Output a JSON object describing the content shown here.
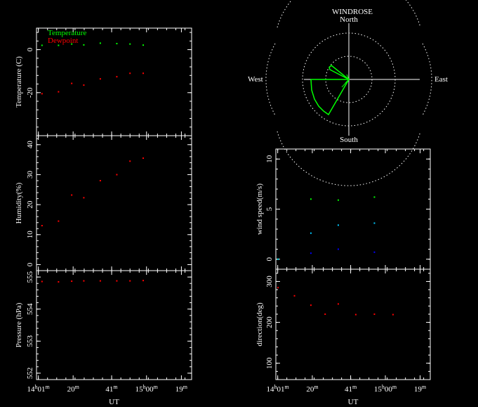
{
  "chart_data": [
    {
      "type": "scatter",
      "ylabel": "Temperature (C)",
      "legend": [
        "Temperature",
        "Dewpoint"
      ],
      "legend_colors": [
        "#00ff00",
        "#ff0000"
      ],
      "ylim": [
        -40,
        10
      ],
      "yticks": [
        "0",
        "-20"
      ],
      "series": [
        {
          "name": "Temperature",
          "color": "#00ff00",
          "x": [
            14.05,
            14.2,
            14.32,
            14.43,
            14.58,
            14.73,
            14.85,
            14.97
          ],
          "y": [
            2,
            2,
            2.6,
            2.2,
            3,
            2.8,
            2.6,
            2.1
          ]
        },
        {
          "name": "Dewpoint",
          "color": "#ff0000",
          "x": [
            14.05,
            14.2,
            14.32,
            14.43,
            14.58,
            14.73,
            14.85,
            14.97
          ],
          "y": [
            -20.5,
            -19.6,
            -15.7,
            -16.5,
            -13.6,
            -12.6,
            -11,
            -11
          ]
        }
      ]
    },
    {
      "type": "scatter",
      "ylabel": "Humidity(%)",
      "ylim": [
        -2,
        43
      ],
      "yticks": [
        "0",
        "10",
        "20",
        "30",
        "40"
      ],
      "series": [
        {
          "color": "#ff0000",
          "x": [
            14.05,
            14.2,
            14.32,
            14.43,
            14.58,
            14.73,
            14.85,
            14.97
          ],
          "y": [
            13,
            14.5,
            23.2,
            22.3,
            28,
            30,
            34.5,
            35.5
          ]
        }
      ]
    },
    {
      "type": "scatter",
      "ylabel": "Pressure (hPa)",
      "xlabel": "UT",
      "ylim": [
        551.8,
        555.2
      ],
      "yticks": [
        "555",
        "554",
        "553",
        "552"
      ],
      "series": [
        {
          "color": "#ff0000",
          "x": [
            14.05,
            14.2,
            14.32,
            14.43,
            14.58,
            14.73,
            14.85,
            14.97
          ],
          "y": [
            554.86,
            554.85,
            554.87,
            554.88,
            554.88,
            554.88,
            554.88,
            554.89
          ]
        }
      ]
    },
    {
      "type": "scatter",
      "ylabel": "wind speed(m/s)",
      "ylim": [
        -1,
        11
      ],
      "yticks": [
        "0",
        "5",
        "10"
      ],
      "series": [
        {
          "color": "#00ff00",
          "x": [
            14.02,
            14.32,
            14.57,
            14.9
          ],
          "y": [
            0,
            6.0,
            5.9,
            6.2
          ]
        },
        {
          "color": "#00c8ff",
          "x": [
            14.02,
            14.32,
            14.57,
            14.9
          ],
          "y": [
            0,
            2.6,
            3.4,
            3.6
          ]
        },
        {
          "color": "#0000ff",
          "x": [
            14.32,
            14.57,
            14.9
          ],
          "y": [
            0.6,
            1.0,
            0.7
          ]
        }
      ]
    },
    {
      "type": "scatter",
      "ylabel": "direction(deg)",
      "xlabel": "UT",
      "ylim": [
        60,
        330
      ],
      "yticks": [
        "300",
        "200",
        "100"
      ],
      "series": [
        {
          "color": "#ff0000",
          "x": [
            14.02,
            14.17,
            14.32,
            14.45,
            14.57,
            14.73,
            14.9,
            15.07
          ],
          "y": [
            285,
            265,
            242,
            220,
            245,
            219,
            220,
            219
          ]
        }
      ]
    },
    {
      "type": "windrose",
      "title": "WINDROSE",
      "directions": {
        "north": "North",
        "south": "South",
        "east": "East",
        "west": "West"
      },
      "color": "#00ff00"
    }
  ],
  "xaxis": {
    "ticks": [
      {
        "h": "14",
        "m": "01",
        "pos": 14.017
      },
      {
        "h": "",
        "m": "20",
        "pos": 14.333
      },
      {
        "h": "",
        "m": "41",
        "pos": 14.683
      },
      {
        "h": "15",
        "m": "00",
        "pos": 15.0
      },
      {
        "h": "",
        "m": "19",
        "pos": 15.317
      }
    ]
  }
}
